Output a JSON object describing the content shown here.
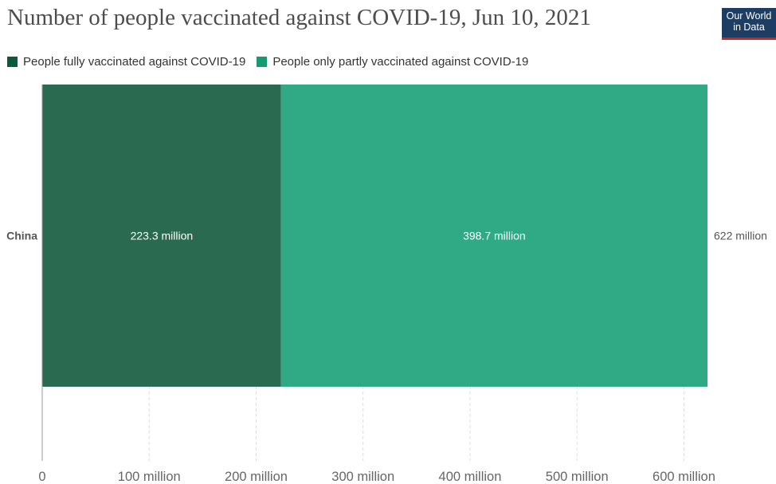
{
  "header": {
    "title": "Number of people vaccinated against COVID-19, Jun 10, 2021",
    "logo_line1": "Our World",
    "logo_line2": "in Data"
  },
  "colors": {
    "fully": "#2a6a50",
    "partly": "#30a985",
    "logo_bg": "#1d3d63",
    "logo_accent": "#ce261e"
  },
  "chart_data": {
    "type": "bar",
    "orientation": "horizontal",
    "stacked": true,
    "title": "Number of people vaccinated against COVID-19, Jun 10, 2021",
    "categories": [
      "China"
    ],
    "series": [
      {
        "name": "People fully vaccinated against COVID-19",
        "values": [
          223.3
        ],
        "label": "223.3 million",
        "color": "#2a6a50"
      },
      {
        "name": "People only partly vaccinated against COVID-19",
        "values": [
          398.7
        ],
        "label": "398.7 million",
        "color": "#30a985"
      }
    ],
    "totals": [
      {
        "value": 622,
        "label": "622 million"
      }
    ],
    "units": "million",
    "xlim": [
      0,
      622
    ],
    "xticks": [
      0,
      100,
      200,
      300,
      400,
      500,
      600
    ],
    "xtick_labels": [
      "0",
      "100 million",
      "200 million",
      "300 million",
      "400 million",
      "500 million",
      "600 million"
    ],
    "grid": "vertical dashed",
    "legend_position": "top-left"
  }
}
